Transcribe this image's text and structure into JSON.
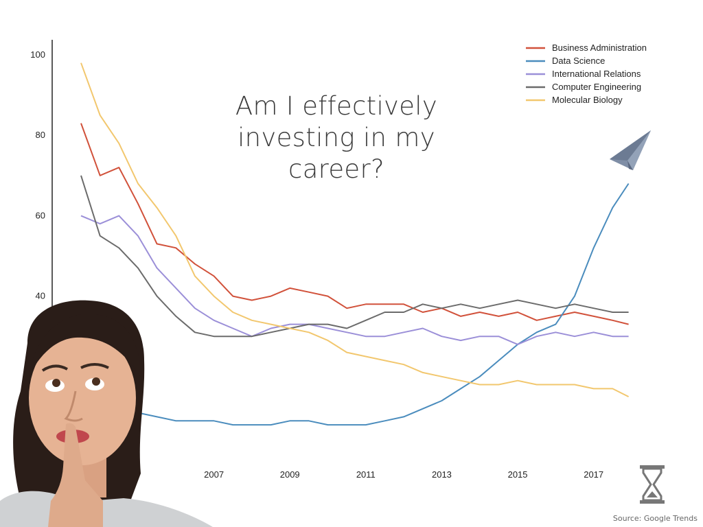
{
  "headline": "Am I effectively investing in my career?",
  "source": "Source: Google Trends",
  "icons": {
    "plane": "paper-plane-icon",
    "hourglass": "hourglass-icon",
    "person": "thinking-woman-illustration"
  },
  "chart_data": {
    "type": "line",
    "title": "",
    "xlabel": "",
    "ylabel": "",
    "x_range": [
      2004.0,
      2018.5
    ],
    "ylim": [
      0,
      100
    ],
    "x_ticks": [
      "2007",
      "2009",
      "2011",
      "2013",
      "2015",
      "2017"
    ],
    "y_ticks": [
      "40",
      "60",
      "80",
      "100"
    ],
    "grid": false,
    "legend_position": "top-right",
    "series": [
      {
        "name": "Business Administration",
        "color": "#d1513a",
        "x": [
          2004.0,
          2004.5,
          2005.0,
          2005.5,
          2006.0,
          2006.5,
          2007.0,
          2007.5,
          2008.0,
          2008.5,
          2009.0,
          2009.5,
          2010.0,
          2010.5,
          2011.0,
          2011.5,
          2012.0,
          2012.5,
          2013.0,
          2013.5,
          2014.0,
          2014.5,
          2015.0,
          2015.5,
          2016.0,
          2016.5,
          2017.0,
          2017.5,
          2018.0,
          2018.42
        ],
        "values": [
          83,
          70,
          72,
          63,
          53,
          52,
          48,
          45,
          40,
          39,
          40,
          42,
          41,
          40,
          37,
          38,
          38,
          38,
          36,
          37,
          35,
          36,
          35,
          36,
          34,
          35,
          36,
          35,
          34,
          33
        ]
      },
      {
        "name": "Data Science",
        "color": "#4a8cbd",
        "x": [
          2004.0,
          2004.5,
          2005.0,
          2005.5,
          2006.0,
          2006.5,
          2007.0,
          2007.5,
          2008.0,
          2008.5,
          2009.0,
          2009.5,
          2010.0,
          2010.5,
          2011.0,
          2011.5,
          2012.0,
          2012.5,
          2013.0,
          2013.5,
          2014.0,
          2014.5,
          2015.0,
          2015.5,
          2016.0,
          2016.5,
          2017.0,
          2017.5,
          2018.0,
          2018.42
        ],
        "values": [
          12,
          11,
          10,
          11,
          10,
          9,
          9,
          9,
          8,
          8,
          8,
          9,
          9,
          8,
          8,
          8,
          9,
          10,
          12,
          14,
          17,
          20,
          24,
          28,
          31,
          33,
          40,
          52,
          62,
          68
        ]
      },
      {
        "name": "International Relations",
        "color": "#9b8fd8",
        "x": [
          2004.0,
          2004.5,
          2005.0,
          2005.5,
          2006.0,
          2006.5,
          2007.0,
          2007.5,
          2008.0,
          2008.5,
          2009.0,
          2009.5,
          2010.0,
          2010.5,
          2011.0,
          2011.5,
          2012.0,
          2012.5,
          2013.0,
          2013.5,
          2014.0,
          2014.5,
          2015.0,
          2015.5,
          2016.0,
          2016.5,
          2017.0,
          2017.5,
          2018.0,
          2018.42
        ],
        "values": [
          60,
          58,
          60,
          55,
          47,
          42,
          37,
          34,
          32,
          30,
          32,
          33,
          33,
          32,
          31,
          30,
          30,
          31,
          32,
          30,
          29,
          30,
          30,
          28,
          30,
          31,
          30,
          31,
          30,
          30
        ]
      },
      {
        "name": "Computer Engineering",
        "color": "#6b6b6b",
        "x": [
          2004.0,
          2004.5,
          2005.0,
          2005.5,
          2006.0,
          2006.5,
          2007.0,
          2007.5,
          2008.0,
          2008.5,
          2009.0,
          2009.5,
          2010.0,
          2010.5,
          2011.0,
          2011.5,
          2012.0,
          2012.5,
          2013.0,
          2013.5,
          2014.0,
          2014.5,
          2015.0,
          2015.5,
          2016.0,
          2016.5,
          2017.0,
          2017.5,
          2018.0,
          2018.42
        ],
        "values": [
          70,
          55,
          52,
          47,
          40,
          35,
          31,
          30,
          30,
          30,
          31,
          32,
          33,
          33,
          32,
          34,
          36,
          36,
          38,
          37,
          38,
          37,
          38,
          39,
          38,
          37,
          38,
          37,
          36,
          36
        ]
      },
      {
        "name": "Molecular Biology",
        "color": "#f2c76e",
        "x": [
          2004.0,
          2004.5,
          2005.0,
          2005.5,
          2006.0,
          2006.5,
          2007.0,
          2007.5,
          2008.0,
          2008.5,
          2009.0,
          2009.5,
          2010.0,
          2010.5,
          2011.0,
          2011.5,
          2012.0,
          2012.5,
          2013.0,
          2013.5,
          2014.0,
          2014.5,
          2015.0,
          2015.5,
          2016.0,
          2016.5,
          2017.0,
          2017.5,
          2018.0,
          2018.42
        ],
        "values": [
          98,
          85,
          78,
          68,
          62,
          55,
          45,
          40,
          36,
          34,
          33,
          32,
          31,
          29,
          26,
          25,
          24,
          23,
          21,
          20,
          19,
          18,
          18,
          19,
          18,
          18,
          18,
          17,
          17,
          15
        ]
      }
    ]
  }
}
